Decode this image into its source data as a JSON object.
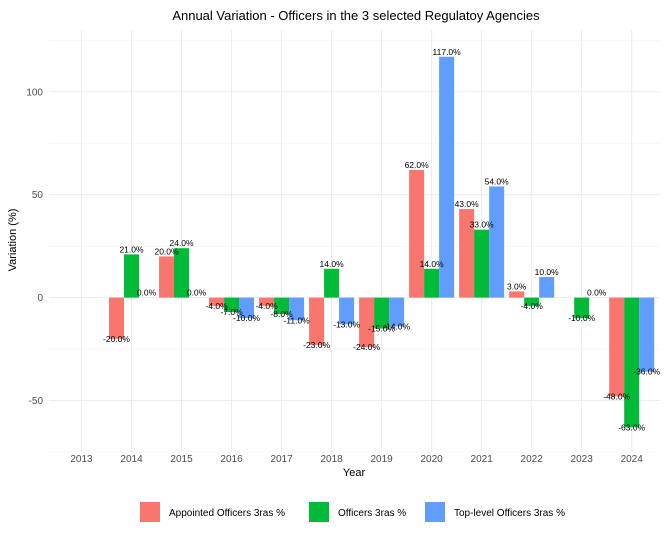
{
  "chart_data": {
    "type": "bar",
    "title": "Annual Variation - Officers in the 3 selected Regulatoy Agencies",
    "xlabel": "Year",
    "ylabel": "Variation (%)",
    "categories": [
      "2013",
      "2014",
      "2015",
      "2016",
      "2017",
      "2018",
      "2019",
      "2020",
      "2021",
      "2022",
      "2023",
      "2024"
    ],
    "yticks": [
      -50,
      0,
      50,
      100
    ],
    "ylim": [
      -75,
      130
    ],
    "grid": true,
    "legend_position": "bottom",
    "series": [
      {
        "name": "Appointed Officers 3ras %",
        "color": "#F8766D",
        "values": [
          null,
          -20,
          20,
          -4,
          -4,
          -23,
          -24,
          62,
          43,
          3,
          null,
          -48
        ],
        "labels": [
          null,
          "-20.0%",
          "20.0%",
          "-4.0%",
          "-4.0%",
          "-23.0%",
          "-24.0%",
          "62.0%",
          "43.0%",
          "3.0%",
          null,
          "-48.0%"
        ]
      },
      {
        "name": "Officers 3ras %",
        "color": "#00BA38",
        "values": [
          null,
          21,
          24,
          -7,
          -8,
          14,
          -15,
          14,
          33,
          -4,
          -10,
          -63
        ],
        "labels": [
          null,
          "21.0%",
          "24.0%",
          "-7.0%",
          "-8.0%",
          "14.0%",
          "-15.0%",
          "14.0%",
          "33.0%",
          "-4.0%",
          "-10.0%",
          "-63.0%"
        ]
      },
      {
        "name": "Top-level Officers 3ras %",
        "color": "#619CFF",
        "values": [
          null,
          0,
          0,
          -10,
          -11,
          -13,
          -14,
          117,
          54,
          10,
          0,
          -36
        ],
        "labels": [
          null,
          "0.0%",
          "0.0%",
          "-10.0%",
          "-11.0%",
          "-13.0%",
          "-14.0%",
          "117.0%",
          "54.0%",
          "10.0%",
          "0.0%",
          "-36.0%"
        ]
      }
    ]
  }
}
